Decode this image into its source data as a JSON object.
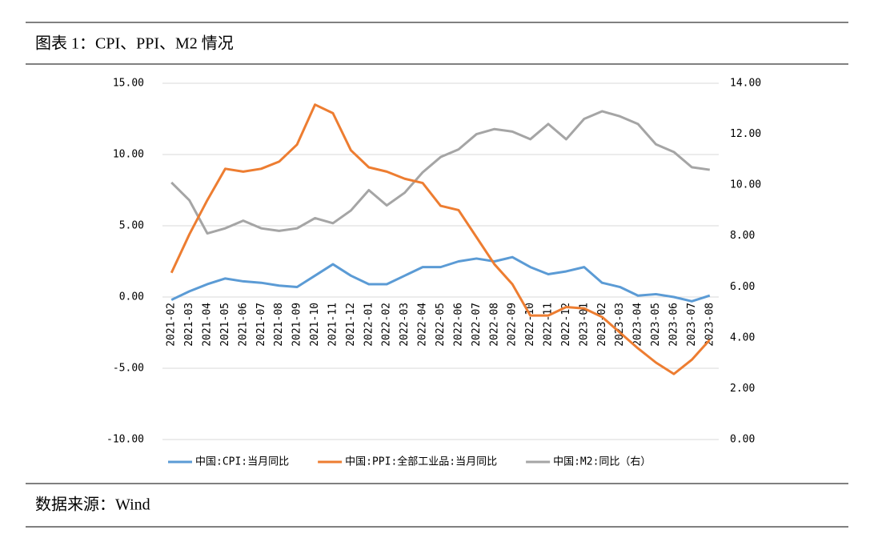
{
  "header": {
    "title": "图表 1：CPI、PPI、M2 情况"
  },
  "chart_data": {
    "type": "line",
    "categories": [
      "2021-02",
      "2021-03",
      "2021-04",
      "2021-05",
      "2021-06",
      "2021-07",
      "2021-08",
      "2021-09",
      "2021-10",
      "2021-11",
      "2021-12",
      "2022-01",
      "2022-02",
      "2022-03",
      "2022-04",
      "2022-05",
      "2022-06",
      "2022-07",
      "2022-08",
      "2022-09",
      "2022-10",
      "2022-11",
      "2022-12",
      "2023-01",
      "2023-02",
      "2023-03",
      "2023-04",
      "2023-05",
      "2023-06",
      "2023-07",
      "2023-08"
    ],
    "series": [
      {
        "name": "中国:CPI:当月同比",
        "color": "#5b9bd5",
        "values": [
          -0.2,
          0.4,
          0.9,
          1.3,
          1.1,
          1.0,
          0.8,
          0.7,
          1.5,
          2.3,
          1.5,
          0.9,
          0.9,
          1.5,
          2.1,
          2.1,
          2.5,
          2.7,
          2.5,
          2.8,
          2.1,
          1.6,
          1.8,
          2.1,
          1.0,
          0.7,
          0.1,
          0.2,
          0.0,
          -0.3,
          0.1
        ]
      },
      {
        "name": "中国:PPI:全部工业品:当月同比",
        "color": "#ed7d31",
        "values": [
          1.7,
          4.4,
          6.8,
          9.0,
          8.8,
          9.0,
          9.5,
          10.7,
          13.5,
          12.9,
          10.3,
          9.1,
          8.8,
          8.3,
          8.0,
          6.4,
          6.1,
          4.2,
          2.3,
          0.9,
          -1.3,
          -1.3,
          -0.7,
          -0.8,
          -1.4,
          -2.5,
          -3.6,
          -4.6,
          -5.4,
          -4.4,
          -3.0
        ]
      },
      {
        "name": "中国:M2:同比（右）",
        "color": "#a5a5a5",
        "axis": "y2",
        "values": [
          10.1,
          9.4,
          8.1,
          8.3,
          8.6,
          8.3,
          8.2,
          8.3,
          8.7,
          8.5,
          9.0,
          9.8,
          9.2,
          9.7,
          10.5,
          11.1,
          11.4,
          12.0,
          12.2,
          12.1,
          11.8,
          12.4,
          11.8,
          12.6,
          12.9,
          12.7,
          12.4,
          11.6,
          11.3,
          10.7,
          10.6
        ]
      }
    ],
    "ylim": [
      -10,
      15
    ],
    "yticks": [
      {
        "value": -10,
        "label": "-10.00"
      },
      {
        "value": -5,
        "label": "-5.00"
      },
      {
        "value": 0,
        "label": "0.00"
      },
      {
        "value": 5,
        "label": "5.00"
      },
      {
        "value": 10,
        "label": "10.00"
      },
      {
        "value": 15,
        "label": "15.00"
      }
    ],
    "y2lim": [
      0,
      14
    ],
    "y2ticks": [
      {
        "value": 0,
        "label": "0.00"
      },
      {
        "value": 2,
        "label": "2.00"
      },
      {
        "value": 4,
        "label": "4.00"
      },
      {
        "value": 6,
        "label": "6.00"
      },
      {
        "value": 8,
        "label": "8.00"
      },
      {
        "value": 10,
        "label": "10.00"
      },
      {
        "value": 12,
        "label": "12.00"
      },
      {
        "value": 14,
        "label": "14.00"
      }
    ],
    "grid": true
  },
  "footer": {
    "source": "数据来源：Wind"
  }
}
